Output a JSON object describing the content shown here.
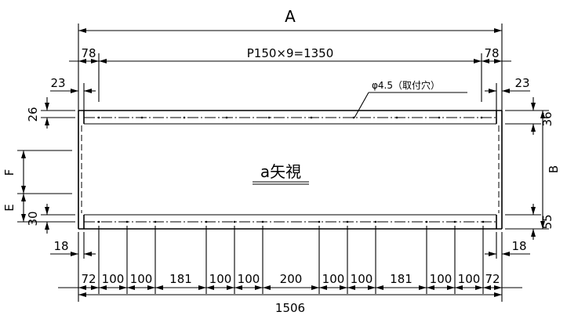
{
  "labels": {
    "dim_a": "A",
    "dim_b": "B",
    "dim_e": "E",
    "dim_f": "F",
    "pitch": "P150×9=1350",
    "left_78": "78",
    "right_78": "78",
    "left_23": "23",
    "right_23": "23",
    "left_26": "26",
    "right_36": "36",
    "left_30": "30",
    "right_55": "55",
    "left_18": "18",
    "right_18": "18",
    "hole_note": "φ4.5（取付穴）",
    "view_title": "a矢視",
    "total": "1506"
  },
  "bottom_dims": [
    "72",
    "100",
    "100",
    "181",
    "100",
    "100",
    "200",
    "100",
    "100",
    "181",
    "100",
    "100",
    "72"
  ]
}
